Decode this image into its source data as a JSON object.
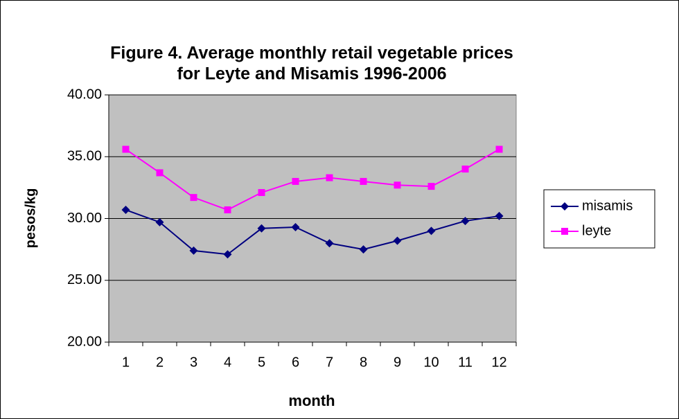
{
  "chart_data": {
    "type": "line",
    "title": [
      "Figure 4. Average monthly retail vegetable prices",
      "for Leyte and Misamis 1996-2006"
    ],
    "x_label": "month",
    "y_label": "pesos/kg",
    "categories": [
      "1",
      "2",
      "3",
      "4",
      "5",
      "6",
      "7",
      "8",
      "9",
      "10",
      "11",
      "12"
    ],
    "series": [
      {
        "name": "misamis",
        "color": "#000080",
        "marker": "diamond",
        "values": [
          30.7,
          29.7,
          27.4,
          27.1,
          29.2,
          29.3,
          28.0,
          27.5,
          28.2,
          29.0,
          29.8,
          30.2
        ]
      },
      {
        "name": "leyte",
        "color": "#ff00ff",
        "marker": "square",
        "values": [
          35.6,
          33.7,
          31.7,
          30.7,
          32.1,
          33.0,
          33.3,
          33.0,
          32.7,
          32.6,
          34.0,
          35.6
        ]
      }
    ],
    "ylim": [
      20,
      40
    ],
    "yticks": [
      {
        "value": 20,
        "label": "20.00"
      },
      {
        "value": 25,
        "label": "25.00"
      },
      {
        "value": 30,
        "label": "30.00"
      },
      {
        "value": 35,
        "label": "35.00"
      },
      {
        "value": 40,
        "label": "40.00"
      }
    ],
    "grid": true,
    "plot_background": "#c0c0c0",
    "legend": "right"
  }
}
